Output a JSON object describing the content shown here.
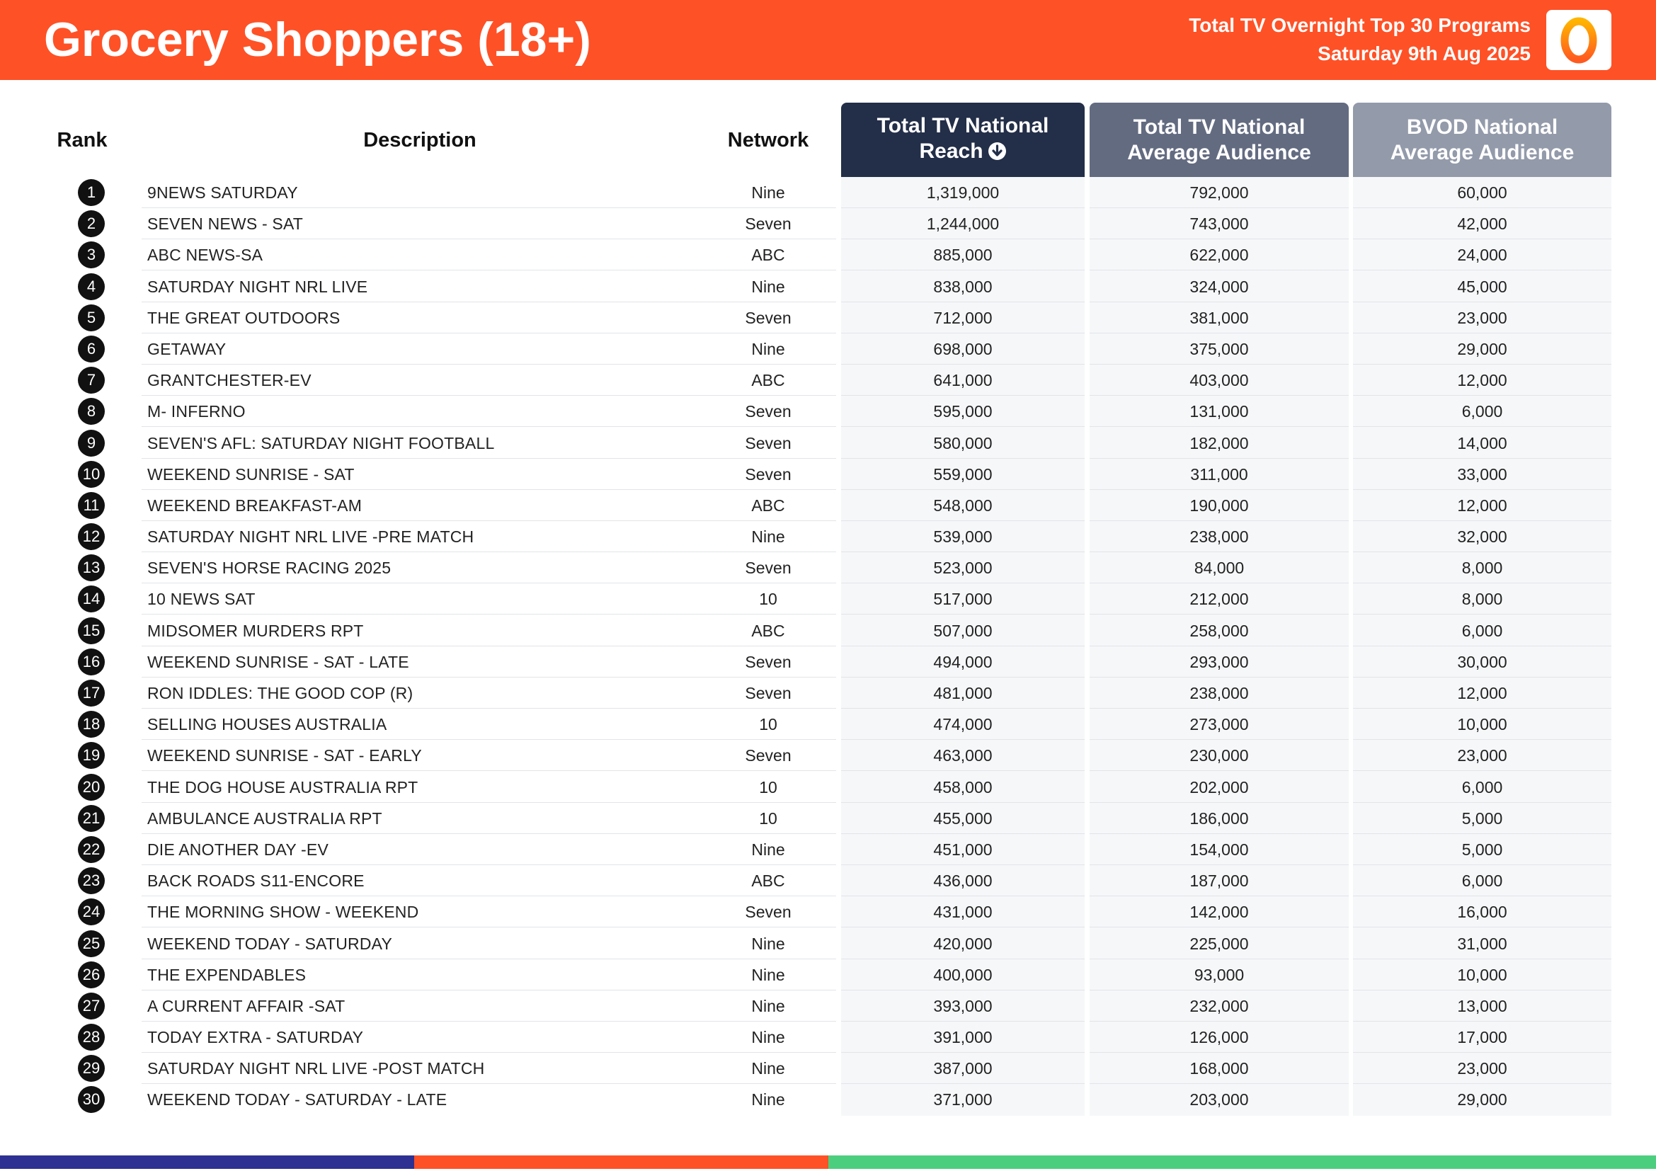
{
  "header": {
    "title": "Grocery Shoppers (18+)",
    "subtitle_line1": "Total TV Overnight Top 30 Programs",
    "subtitle_line2": "Saturday 9th Aug 2025",
    "logo_icon": "oztam-logo-icon",
    "bg_color": "#ff5126"
  },
  "columns": {
    "rank": "Rank",
    "description": "Description",
    "network": "Network",
    "reach_line1": "Total TV National",
    "reach_line2": "Reach",
    "reach_sort_icon": "sort-descending-icon",
    "avg_line1": "Total TV National",
    "avg_line2": "Average Audience",
    "bvod_line1": "BVOD National",
    "bvod_line2": "Average Audience"
  },
  "rows": [
    {
      "rank": "1",
      "description": "9NEWS SATURDAY",
      "network": "Nine",
      "reach": "1,319,000",
      "avg": "792,000",
      "bvod": "60,000"
    },
    {
      "rank": "2",
      "description": "SEVEN NEWS - SAT",
      "network": "Seven",
      "reach": "1,244,000",
      "avg": "743,000",
      "bvod": "42,000"
    },
    {
      "rank": "3",
      "description": "ABC NEWS-SA",
      "network": "ABC",
      "reach": "885,000",
      "avg": "622,000",
      "bvod": "24,000"
    },
    {
      "rank": "4",
      "description": "SATURDAY NIGHT NRL LIVE",
      "network": "Nine",
      "reach": "838,000",
      "avg": "324,000",
      "bvod": "45,000"
    },
    {
      "rank": "5",
      "description": "THE GREAT OUTDOORS",
      "network": "Seven",
      "reach": "712,000",
      "avg": "381,000",
      "bvod": "23,000"
    },
    {
      "rank": "6",
      "description": "GETAWAY",
      "network": "Nine",
      "reach": "698,000",
      "avg": "375,000",
      "bvod": "29,000"
    },
    {
      "rank": "7",
      "description": "GRANTCHESTER-EV",
      "network": "ABC",
      "reach": "641,000",
      "avg": "403,000",
      "bvod": "12,000"
    },
    {
      "rank": "8",
      "description": "M- INFERNO",
      "network": "Seven",
      "reach": "595,000",
      "avg": "131,000",
      "bvod": "6,000"
    },
    {
      "rank": "9",
      "description": "SEVEN'S AFL: SATURDAY NIGHT FOOTBALL",
      "network": "Seven",
      "reach": "580,000",
      "avg": "182,000",
      "bvod": "14,000"
    },
    {
      "rank": "10",
      "description": "WEEKEND SUNRISE - SAT",
      "network": "Seven",
      "reach": "559,000",
      "avg": "311,000",
      "bvod": "33,000"
    },
    {
      "rank": "11",
      "description": "WEEKEND BREAKFAST-AM",
      "network": "ABC",
      "reach": "548,000",
      "avg": "190,000",
      "bvod": "12,000"
    },
    {
      "rank": "12",
      "description": "SATURDAY NIGHT NRL LIVE -PRE MATCH",
      "network": "Nine",
      "reach": "539,000",
      "avg": "238,000",
      "bvod": "32,000"
    },
    {
      "rank": "13",
      "description": "SEVEN'S HORSE RACING 2025",
      "network": "Seven",
      "reach": "523,000",
      "avg": "84,000",
      "bvod": "8,000"
    },
    {
      "rank": "14",
      "description": "10 NEWS SAT",
      "network": "10",
      "reach": "517,000",
      "avg": "212,000",
      "bvod": "8,000"
    },
    {
      "rank": "15",
      "description": "MIDSOMER MURDERS RPT",
      "network": "ABC",
      "reach": "507,000",
      "avg": "258,000",
      "bvod": "6,000"
    },
    {
      "rank": "16",
      "description": "WEEKEND SUNRISE - SAT - LATE",
      "network": "Seven",
      "reach": "494,000",
      "avg": "293,000",
      "bvod": "30,000"
    },
    {
      "rank": "17",
      "description": "RON IDDLES: THE GOOD COP (R)",
      "network": "Seven",
      "reach": "481,000",
      "avg": "238,000",
      "bvod": "12,000"
    },
    {
      "rank": "18",
      "description": "SELLING HOUSES AUSTRALIA",
      "network": "10",
      "reach": "474,000",
      "avg": "273,000",
      "bvod": "10,000"
    },
    {
      "rank": "19",
      "description": "WEEKEND SUNRISE - SAT - EARLY",
      "network": "Seven",
      "reach": "463,000",
      "avg": "230,000",
      "bvod": "23,000"
    },
    {
      "rank": "20",
      "description": "THE DOG HOUSE AUSTRALIA RPT",
      "network": "10",
      "reach": "458,000",
      "avg": "202,000",
      "bvod": "6,000"
    },
    {
      "rank": "21",
      "description": "AMBULANCE AUSTRALIA RPT",
      "network": "10",
      "reach": "455,000",
      "avg": "186,000",
      "bvod": "5,000"
    },
    {
      "rank": "22",
      "description": "DIE ANOTHER DAY -EV",
      "network": "Nine",
      "reach": "451,000",
      "avg": "154,000",
      "bvod": "5,000"
    },
    {
      "rank": "23",
      "description": "BACK ROADS S11-ENCORE",
      "network": "ABC",
      "reach": "436,000",
      "avg": "187,000",
      "bvod": "6,000"
    },
    {
      "rank": "24",
      "description": "THE MORNING SHOW - WEEKEND",
      "network": "Seven",
      "reach": "431,000",
      "avg": "142,000",
      "bvod": "16,000"
    },
    {
      "rank": "25",
      "description": "WEEKEND TODAY - SATURDAY",
      "network": "Nine",
      "reach": "420,000",
      "avg": "225,000",
      "bvod": "31,000"
    },
    {
      "rank": "26",
      "description": "THE EXPENDABLES",
      "network": "Nine",
      "reach": "400,000",
      "avg": "93,000",
      "bvod": "10,000"
    },
    {
      "rank": "27",
      "description": "A CURRENT AFFAIR -SAT",
      "network": "Nine",
      "reach": "393,000",
      "avg": "232,000",
      "bvod": "13,000"
    },
    {
      "rank": "28",
      "description": "TODAY EXTRA - SATURDAY",
      "network": "Nine",
      "reach": "391,000",
      "avg": "126,000",
      "bvod": "17,000"
    },
    {
      "rank": "29",
      "description": "SATURDAY NIGHT NRL LIVE -POST MATCH",
      "network": "Nine",
      "reach": "387,000",
      "avg": "168,000",
      "bvod": "23,000"
    },
    {
      "rank": "30",
      "description": "WEEKEND TODAY - SATURDAY - LATE",
      "network": "Nine",
      "reach": "371,000",
      "avg": "203,000",
      "bvod": "29,000"
    }
  ],
  "footer_colors": [
    "#2e3192",
    "#ff5126",
    "#4cce7f"
  ]
}
